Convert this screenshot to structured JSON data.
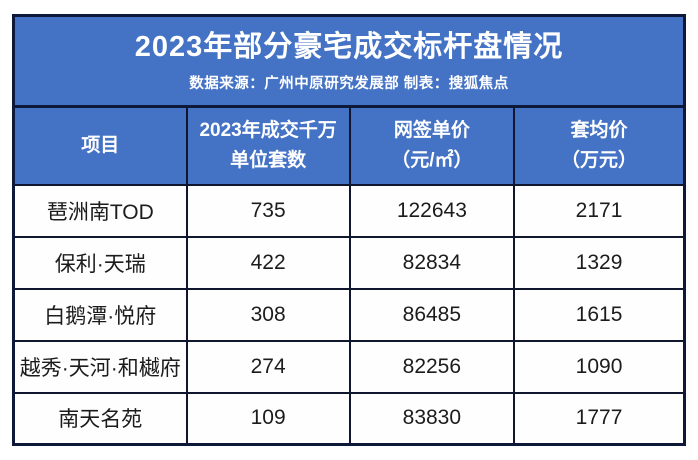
{
  "banner": {
    "title": "2023年部分豪宅成交标杆盘情况",
    "subtitle": "数据来源：广州中原研究发展部 制表：搜狐焦点",
    "background_color": "#4472c4",
    "border_color": "#0e1838",
    "text_color": "#ffffff"
  },
  "table": {
    "header_background": "#4472c4",
    "header_text_color": "#ffffff",
    "body_background": "#fefefe",
    "body_text_color": "#1c1c1c",
    "border_color": "#10162e",
    "columns": [
      {
        "line1": "项目",
        "line2": ""
      },
      {
        "line1": "2023年成交千万",
        "line2": "单位套数"
      },
      {
        "line1": "网签单价",
        "line2": "（元/㎡）"
      },
      {
        "line1": "套均价",
        "line2": "（万元）"
      }
    ],
    "rows": [
      {
        "project": "琶洲南TOD",
        "units": "735",
        "unit_price": "122643",
        "avg_price": "2171"
      },
      {
        "project": "保利·天瑞",
        "units": "422",
        "unit_price": "82834",
        "avg_price": "1329"
      },
      {
        "project": "白鹅潭·悦府",
        "units": "308",
        "unit_price": "86485",
        "avg_price": "1615"
      },
      {
        "project": "越秀·天河·和樾府",
        "units": "274",
        "unit_price": "82256",
        "avg_price": "1090"
      },
      {
        "project": "南天名苑",
        "units": "109",
        "unit_price": "83830",
        "avg_price": "1777"
      }
    ]
  },
  "chart_data": {
    "type": "table",
    "title": "2023年部分豪宅成交标杆盘情况",
    "subtitle": "数据来源：广州中原研究发展部 制表：搜狐焦点",
    "columns": [
      "项目",
      "2023年成交千万单位套数",
      "网签单价（元/㎡）",
      "套均价（万元）"
    ],
    "rows": [
      [
        "琶洲南TOD",
        735,
        122643,
        2171
      ],
      [
        "保利·天瑞",
        422,
        82834,
        1329
      ],
      [
        "白鹅潭·悦府",
        308,
        86485,
        1615
      ],
      [
        "越秀·天河·和樾府",
        274,
        82256,
        1090
      ],
      [
        "南天名苑",
        109,
        83830,
        1777
      ]
    ]
  }
}
